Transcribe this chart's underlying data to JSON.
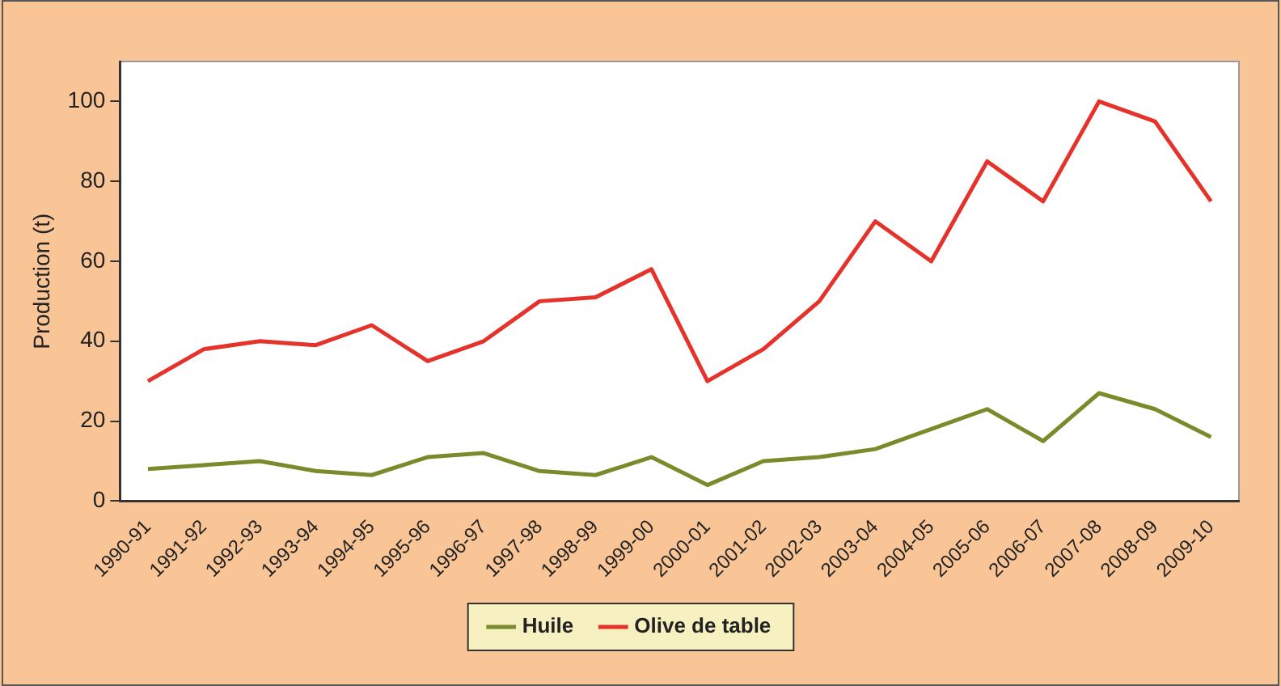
{
  "chart_data": {
    "type": "line",
    "ylabel": "Production (t)",
    "categories": [
      "1990-91",
      "1991-92",
      "1992-93",
      "1993-94",
      "1994-95",
      "1995-96",
      "1996-97",
      "1997-98",
      "1998-99",
      "1999-00",
      "2000-01",
      "2001-02",
      "2002-03",
      "2003-04",
      "2004-05",
      "2005-06",
      "2006-07",
      "2007-08",
      "2008-09",
      "2009-10"
    ],
    "series": [
      {
        "name": "Huile",
        "color": "#7b8b2c",
        "values": [
          8,
          9,
          10,
          7.5,
          6.5,
          11,
          12,
          7.5,
          6.5,
          11,
          4,
          10,
          11,
          13,
          18,
          23,
          15,
          27,
          23,
          16
        ]
      },
      {
        "name": "Olive de table",
        "color": "#e5322b",
        "values": [
          30,
          38,
          40,
          39,
          44,
          35,
          40,
          50,
          51,
          58,
          30,
          38,
          50,
          70,
          60,
          85,
          75,
          100,
          95,
          75
        ]
      }
    ],
    "ylim": [
      0,
      110
    ],
    "yticks": [
      0,
      20,
      40,
      60,
      80,
      100
    ],
    "grid": false,
    "legend": "bottom",
    "marker": "none",
    "line_style": "solid"
  }
}
